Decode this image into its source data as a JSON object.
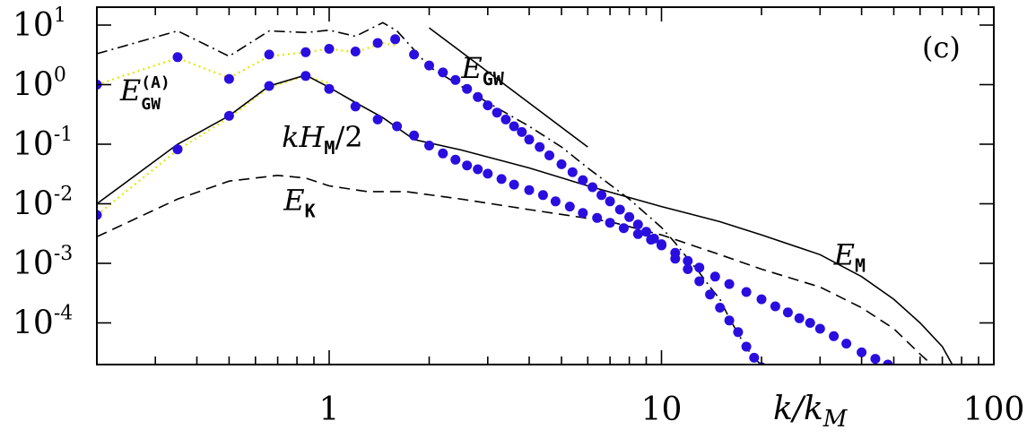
{
  "chart_data": {
    "type": "line",
    "panel_label": "(c)",
    "xlabel": "k/k",
    "xlabel_sub": "M",
    "xscale": "log",
    "yscale": "log",
    "xlim": [
      0.2,
      100
    ],
    "ylim": [
      2e-05,
      20
    ],
    "grid": false,
    "x_ticks": [
      {
        "value": 1,
        "label": "1"
      },
      {
        "value": 10,
        "label": "10"
      },
      {
        "value": 100,
        "label": "100"
      }
    ],
    "y_ticks": [
      {
        "value": 10,
        "base": "10",
        "exp": "1"
      },
      {
        "value": 1,
        "base": "10",
        "exp": "0"
      },
      {
        "value": 0.1,
        "base": "10",
        "exp": "-1"
      },
      {
        "value": 0.01,
        "base": "10",
        "exp": "-2"
      },
      {
        "value": 0.001,
        "base": "10",
        "exp": "-3"
      },
      {
        "value": 0.0001,
        "base": "10",
        "exp": "-4"
      }
    ],
    "annotations": [
      {
        "id": "egw",
        "text": "E",
        "sub": "GW",
        "sup": "",
        "x": 2.5,
        "y": 1.3
      },
      {
        "id": "egw-a",
        "text": "E",
        "sub": "GW",
        "sup": "(A)",
        "x": 0.235,
        "y": 0.55
      },
      {
        "id": "khm",
        "text": "kH",
        "sub": "M",
        "sup": "",
        "suffix": "/2",
        "x": 0.72,
        "y": 0.09
      },
      {
        "id": "ek",
        "text": "E",
        "sub": "K",
        "sup": "",
        "x": 0.73,
        "y": 0.0078
      },
      {
        "id": "em",
        "text": "E",
        "sub": "M",
        "sup": "",
        "x": 33,
        "y": 0.00095
      }
    ],
    "series": [
      {
        "name": "E_GW",
        "style": "dashdot",
        "color": "#000000",
        "x": [
          0.2,
          0.35,
          0.5,
          0.66,
          0.85,
          1.0,
          1.2,
          1.45,
          1.6,
          2.0,
          3.0,
          4.0,
          5.0,
          6.0,
          8.0,
          10.0,
          11.0,
          12.0,
          13.0,
          14.0,
          15.0,
          16.0,
          17.5,
          19.0,
          20.0,
          21.0
        ],
        "y": [
          3.3,
          8.0,
          3.0,
          8.0,
          7.5,
          8.2,
          6.5,
          11.0,
          8.0,
          2.0,
          0.5,
          0.2,
          0.09,
          0.04,
          0.012,
          0.004,
          0.0022,
          0.0012,
          0.0007,
          0.0004,
          0.00025,
          0.00012,
          5e-05,
          2.5e-05,
          2e-05,
          2e-05
        ]
      },
      {
        "name": "E_GW^(A)",
        "style": "dotted",
        "color": "#e6e600",
        "x": [
          0.2,
          0.35,
          0.5,
          0.66,
          0.85,
          1.0,
          1.2,
          1.45,
          1.6
        ],
        "y": [
          1.0,
          2.8,
          1.3,
          3.0,
          3.5,
          4.0,
          3.5,
          5.0,
          4.5
        ]
      },
      {
        "name": "kH_M/2",
        "style": "dotted",
        "color": "#e6e600",
        "x": [
          0.2,
          0.35,
          0.5,
          0.66,
          0.85,
          1.0
        ],
        "y": [
          0.0065,
          0.08,
          0.28,
          0.9,
          1.4,
          1.05
        ]
      },
      {
        "name": "E_M",
        "style": "solid",
        "color": "#000000",
        "x": [
          0.2,
          0.35,
          0.5,
          0.66,
          0.85,
          1.0,
          1.2,
          1.45,
          1.8,
          2.5,
          4.0,
          6.0,
          10.0,
          15.0,
          20.0,
          30.0,
          40.0,
          50.0,
          60.0,
          70.0,
          75.0
        ],
        "y": [
          0.01,
          0.1,
          0.3,
          0.95,
          1.45,
          0.9,
          0.5,
          0.28,
          0.12,
          0.08,
          0.04,
          0.02,
          0.009,
          0.005,
          0.003,
          0.0014,
          0.0006,
          0.00025,
          0.0001,
          4e-05,
          2e-05
        ]
      },
      {
        "name": "E_K",
        "style": "dashed",
        "color": "#000000",
        "x": [
          0.2,
          0.35,
          0.5,
          0.7,
          0.85,
          1.0,
          1.3,
          1.7,
          2.5,
          4.0,
          7.0,
          10.0,
          15.0,
          20.0,
          30.0,
          40.0,
          50.0,
          60.0,
          65.0
        ],
        "y": [
          0.0028,
          0.012,
          0.024,
          0.03,
          0.027,
          0.02,
          0.016,
          0.016,
          0.012,
          0.008,
          0.005,
          0.003,
          0.0014,
          0.0008,
          0.0004,
          0.00018,
          8e-05,
          3e-05,
          2e-05
        ]
      },
      {
        "name": "E_GW points",
        "style": "markers",
        "color": "#2a0ee0",
        "x": [
          0.2,
          0.35,
          0.5,
          0.66,
          0.85,
          1.0,
          1.2,
          1.4,
          1.58,
          1.8,
          2.0,
          2.2,
          2.4,
          2.6,
          2.8,
          3.0,
          3.2,
          3.4,
          3.6,
          3.8,
          4.0,
          4.3,
          4.6,
          5.0,
          5.4,
          5.8,
          6.2,
          6.6,
          7.0,
          7.5,
          8.0,
          8.5,
          9.0,
          9.5,
          10.0,
          11.0,
          12.0,
          13.0,
          14.0,
          15.0,
          16.0,
          17.0,
          18.0,
          19.0,
          20.0
        ],
        "y": [
          1.0,
          2.9,
          1.25,
          3.2,
          3.5,
          4.0,
          3.6,
          5.0,
          5.8,
          3.2,
          2.1,
          1.6,
          1.2,
          0.85,
          0.62,
          0.45,
          0.34,
          0.26,
          0.2,
          0.16,
          0.12,
          0.09,
          0.065,
          0.046,
          0.034,
          0.025,
          0.019,
          0.014,
          0.011,
          0.008,
          0.006,
          0.0045,
          0.0034,
          0.0026,
          0.002,
          0.0012,
          0.0008,
          0.0005,
          0.0003,
          0.00018,
          0.00011,
          7e-05,
          4e-05,
          2.6e-05,
          1.8e-05
        ]
      },
      {
        "name": "E_M points",
        "style": "markers",
        "color": "#2a0ee0",
        "x": [
          0.2,
          0.35,
          0.5,
          0.66,
          0.85,
          1.0,
          1.2,
          1.4,
          1.6,
          1.8,
          2.0,
          2.2,
          2.4,
          2.6,
          2.8,
          3.0,
          3.3,
          3.6,
          4.0,
          4.4,
          4.8,
          5.3,
          5.8,
          6.4,
          7.0,
          7.7,
          8.5,
          9.3,
          10.0,
          11.0,
          12.0,
          13.0,
          14.5,
          16.0,
          18.0,
          20.0,
          22.0,
          24.0,
          26.0,
          28.0,
          30.0,
          33.0,
          36.0,
          40.0,
          44.0,
          48.0
        ],
        "y": [
          0.0065,
          0.082,
          0.3,
          0.95,
          1.4,
          0.85,
          0.43,
          0.26,
          0.2,
          0.14,
          0.095,
          0.07,
          0.055,
          0.044,
          0.038,
          0.032,
          0.026,
          0.021,
          0.017,
          0.014,
          0.011,
          0.009,
          0.007,
          0.0058,
          0.0048,
          0.0039,
          0.0031,
          0.0025,
          0.0021,
          0.0015,
          0.0011,
          0.00085,
          0.0006,
          0.00045,
          0.00033,
          0.00025,
          0.00019,
          0.00015,
          0.00012,
          0.0001,
          8e-05,
          6e-05,
          4.5e-05,
          3.2e-05,
          2.5e-05,
          2e-05
        ]
      },
      {
        "name": "k^-5/3 reference",
        "style": "solid",
        "color": "#000000",
        "x": [
          2.0,
          6.0
        ],
        "y": [
          9.0,
          0.09
        ]
      }
    ]
  }
}
